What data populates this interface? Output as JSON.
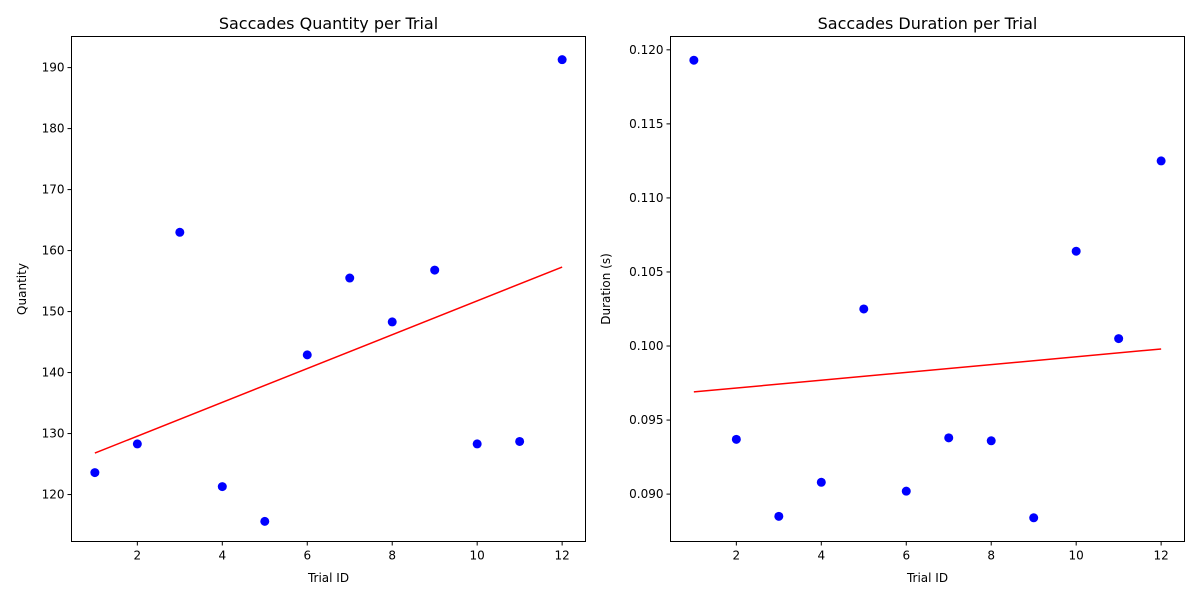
{
  "chart_data": [
    {
      "type": "scatter",
      "title": "Saccades Quantity per Trial",
      "xlabel": "Trial ID",
      "ylabel": "Quantity",
      "xlim": [
        0.45,
        12.55
      ],
      "ylim": [
        112.3,
        195.1
      ],
      "xticks": [
        2,
        4,
        6,
        8,
        10,
        12
      ],
      "xtick_labels": [
        "2",
        "4",
        "6",
        "8",
        "10",
        "12"
      ],
      "yticks": [
        120,
        130,
        140,
        150,
        160,
        170,
        180,
        190
      ],
      "ytick_labels": [
        "120",
        "130",
        "140",
        "150",
        "160",
        "170",
        "180",
        "190"
      ],
      "grid": false,
      "points": {
        "x": [
          1,
          2,
          3,
          4,
          5,
          6,
          7,
          8,
          9,
          10,
          11,
          12
        ],
        "y": [
          123.6,
          128.3,
          163.0,
          121.3,
          115.6,
          142.9,
          155.5,
          148.3,
          156.8,
          128.3,
          128.7,
          191.3
        ],
        "color": "#0000ff"
      },
      "trendline": {
        "x": [
          1,
          12
        ],
        "y": [
          126.8,
          157.3
        ],
        "color": "#ff0000"
      }
    },
    {
      "type": "scatter",
      "title": "Saccades Duration per Trial",
      "xlabel": "Trial ID",
      "ylabel": "Duration (s)",
      "xlim": [
        0.45,
        12.55
      ],
      "ylim": [
        0.0868,
        0.1209
      ],
      "xticks": [
        2,
        4,
        6,
        8,
        10,
        12
      ],
      "xtick_labels": [
        "2",
        "4",
        "6",
        "8",
        "10",
        "12"
      ],
      "yticks": [
        0.09,
        0.095,
        0.1,
        0.105,
        0.11,
        0.115,
        0.12
      ],
      "ytick_labels": [
        "0.090",
        "0.095",
        "0.100",
        "0.105",
        "0.110",
        "0.115",
        "0.120"
      ],
      "grid": false,
      "points": {
        "x": [
          1,
          2,
          3,
          4,
          5,
          6,
          7,
          8,
          9,
          10,
          11,
          12
        ],
        "y": [
          0.1193,
          0.0937,
          0.0885,
          0.0908,
          0.1025,
          0.0902,
          0.0938,
          0.0936,
          0.0884,
          0.1064,
          0.1005,
          0.1125
        ],
        "color": "#0000ff"
      },
      "trendline": {
        "x": [
          1,
          12
        ],
        "y": [
          0.0969,
          0.0998
        ],
        "color": "#ff0000"
      }
    }
  ]
}
